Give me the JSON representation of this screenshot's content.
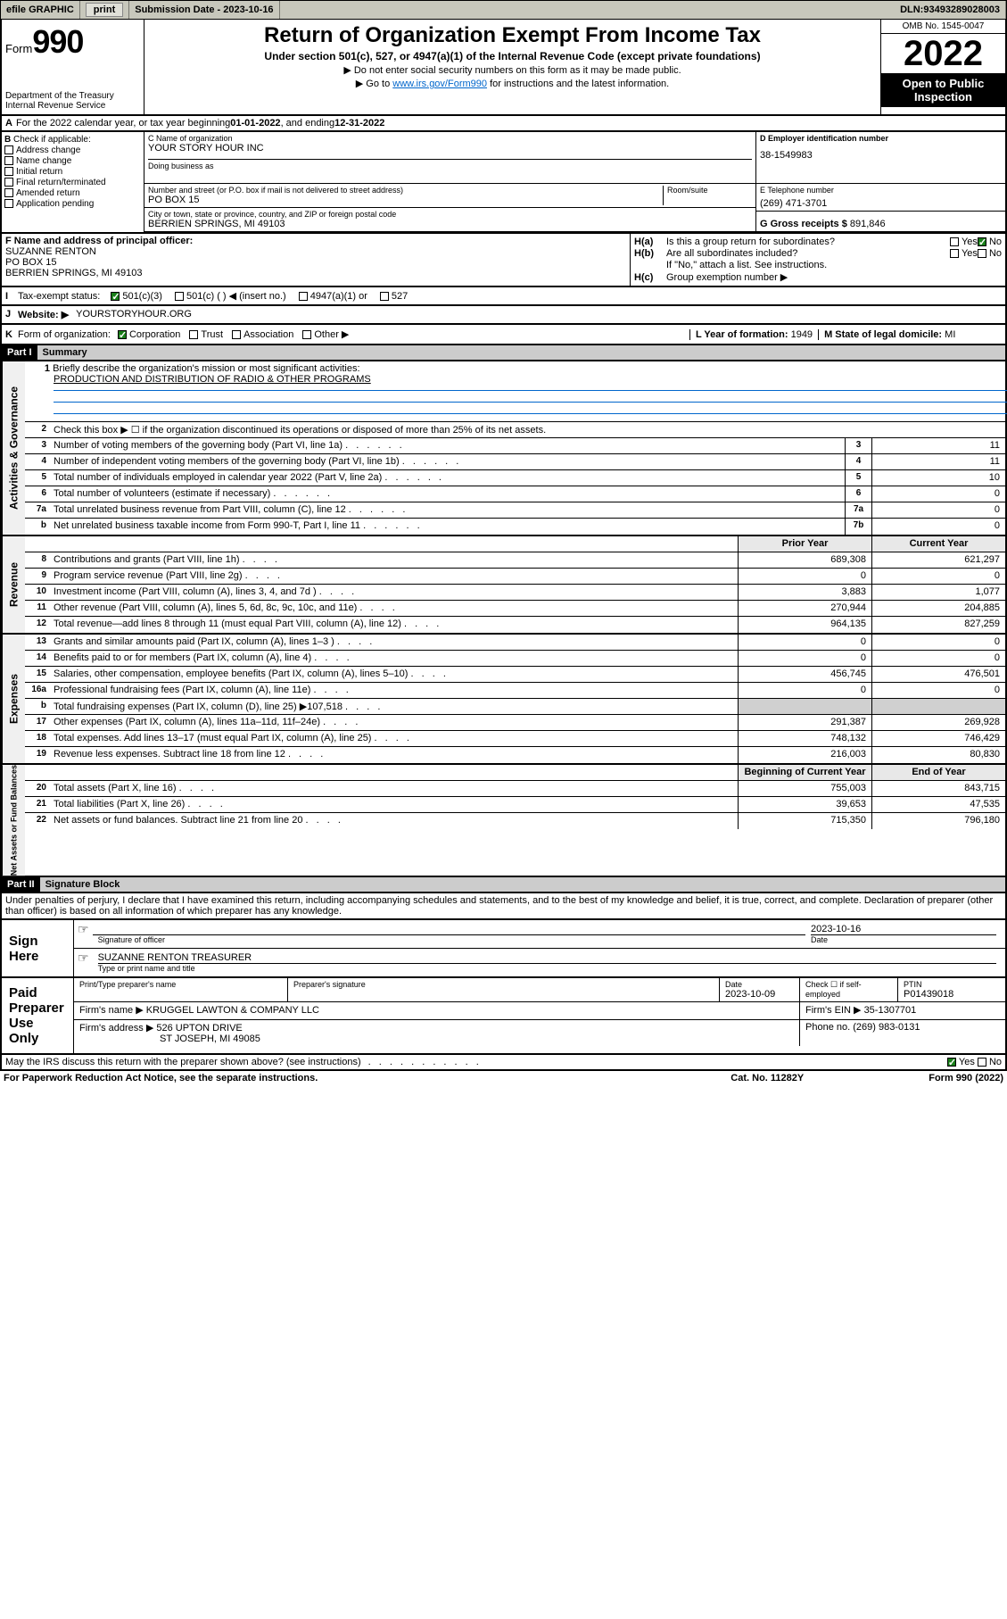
{
  "topbar": {
    "efile": "efile GRAPHIC",
    "print": "print",
    "submission_label": "Submission Date - ",
    "submission_date": "2023-10-16",
    "dln_label": "DLN: ",
    "dln": "93493289028003"
  },
  "header": {
    "form_word": "Form",
    "form_num": "990",
    "dept": "Department of the Treasury",
    "irs": "Internal Revenue Service",
    "title": "Return of Organization Exempt From Income Tax",
    "subtitle": "Under section 501(c), 527, or 4947(a)(1) of the Internal Revenue Code (except private foundations)",
    "note1": "▶ Do not enter social security numbers on this form as it may be made public.",
    "note2_a": "▶ Go to ",
    "note2_link": "www.irs.gov/Form990",
    "note2_b": " for instructions and the latest information.",
    "omb": "OMB No. 1545-0047",
    "year": "2022",
    "open_pub1": "Open to Public",
    "open_pub2": "Inspection"
  },
  "lineA": {
    "a": "A",
    "text": "For the 2022 calendar year, or tax year beginning ",
    "begin": "01-01-2022",
    "mid": " , and ending ",
    "end": "12-31-2022"
  },
  "sectionB": {
    "b": "B",
    "label": "Check if applicable:",
    "items": [
      "Address change",
      "Name change",
      "Initial return",
      "Final return/terminated",
      "Amended return",
      "Application pending"
    ]
  },
  "sectionC": {
    "c_lbl": "C Name of organization",
    "name": "YOUR STORY HOUR INC",
    "dba_lbl": "Doing business as",
    "street_lbl": "Number and street (or P.O. box if mail is not delivered to street address)",
    "street": "PO BOX 15",
    "room_lbl": "Room/suite",
    "city_lbl": "City or town, state or province, country, and ZIP or foreign postal code",
    "city": "BERRIEN SPRINGS, MI  49103"
  },
  "sectionD": {
    "lbl": "D Employer identification number",
    "val": "38-1549983"
  },
  "sectionE": {
    "lbl": "E Telephone number",
    "val": "(269) 471-3701"
  },
  "sectionG": {
    "lbl": "G Gross receipts $",
    "val": "891,846"
  },
  "sectionF": {
    "lbl": "F Name and address of principal officer:",
    "name": "SUZANNE RENTON",
    "addr1": "PO BOX 15",
    "addr2": "BERRIEN SPRINGS, MI  49103"
  },
  "sectionH": {
    "ha": "H(a)",
    "ha_txt": "Is this a group return for subordinates?",
    "hb": "H(b)",
    "hb_txt": "Are all subordinates included?",
    "hb_note": "If \"No,\" attach a list. See instructions.",
    "hc": "H(c)",
    "hc_txt": "Group exemption number ▶",
    "yes": "Yes",
    "no": "No"
  },
  "sectionI": {
    "i": "I",
    "lbl": "Tax-exempt status:",
    "opts": [
      "501(c)(3)",
      "501(c) (  ) ◀ (insert no.)",
      "4947(a)(1) or",
      "527"
    ]
  },
  "sectionJ": {
    "j": "J",
    "lbl": "Website: ▶",
    "val": "YOURSTORYHOUR.ORG"
  },
  "sectionK": {
    "k": "K",
    "lbl": "Form of organization:",
    "opts": [
      "Corporation",
      "Trust",
      "Association",
      "Other ▶"
    ]
  },
  "sectionL": {
    "lbl": "L Year of formation:",
    "val": "1949"
  },
  "sectionM": {
    "lbl": "M State of legal domicile:",
    "val": "MI"
  },
  "partI": {
    "tag": "Part I",
    "title": "Summary"
  },
  "summary": {
    "activities_governance": {
      "label": "Activities & Governance",
      "q1_num": "1",
      "q1": "Briefly describe the organization's mission or most significant activities:",
      "q1_val": "PRODUCTION AND DISTRIBUTION OF RADIO & OTHER PROGRAMS",
      "q2_num": "2",
      "q2": "Check this box ▶ ☐  if the organization discontinued its operations or disposed of more than 25% of its net assets.",
      "rows": [
        {
          "n": "3",
          "t": "Number of voting members of the governing body (Part VI, line 1a)",
          "box": "3",
          "v": "11"
        },
        {
          "n": "4",
          "t": "Number of independent voting members of the governing body (Part VI, line 1b)",
          "box": "4",
          "v": "11"
        },
        {
          "n": "5",
          "t": "Total number of individuals employed in calendar year 2022 (Part V, line 2a)",
          "box": "5",
          "v": "10"
        },
        {
          "n": "6",
          "t": "Total number of volunteers (estimate if necessary)",
          "box": "6",
          "v": "0"
        },
        {
          "n": "7a",
          "t": "Total unrelated business revenue from Part VIII, column (C), line 12",
          "box": "7a",
          "v": "0"
        },
        {
          "n": "b",
          "t": "Net unrelated business taxable income from Form 990-T, Part I, line 11",
          "box": "7b",
          "v": "0"
        }
      ]
    },
    "yr_hdr": {
      "prior": "Prior Year",
      "current": "Current Year"
    },
    "revenue": {
      "label": "Revenue",
      "rows": [
        {
          "n": "8",
          "t": "Contributions and grants (Part VIII, line 1h)",
          "p": "689,308",
          "c": "621,297"
        },
        {
          "n": "9",
          "t": "Program service revenue (Part VIII, line 2g)",
          "p": "0",
          "c": "0"
        },
        {
          "n": "10",
          "t": "Investment income (Part VIII, column (A), lines 3, 4, and 7d )",
          "p": "3,883",
          "c": "1,077"
        },
        {
          "n": "11",
          "t": "Other revenue (Part VIII, column (A), lines 5, 6d, 8c, 9c, 10c, and 11e)",
          "p": "270,944",
          "c": "204,885"
        },
        {
          "n": "12",
          "t": "Total revenue—add lines 8 through 11 (must equal Part VIII, column (A), line 12)",
          "p": "964,135",
          "c": "827,259"
        }
      ]
    },
    "expenses": {
      "label": "Expenses",
      "rows": [
        {
          "n": "13",
          "t": "Grants and similar amounts paid (Part IX, column (A), lines 1–3 )",
          "p": "0",
          "c": "0"
        },
        {
          "n": "14",
          "t": "Benefits paid to or for members (Part IX, column (A), line 4)",
          "p": "0",
          "c": "0"
        },
        {
          "n": "15",
          "t": "Salaries, other compensation, employee benefits (Part IX, column (A), lines 5–10)",
          "p": "456,745",
          "c": "476,501"
        },
        {
          "n": "16a",
          "t": "Professional fundraising fees (Part IX, column (A), line 11e)",
          "p": "0",
          "c": "0"
        },
        {
          "n": "b",
          "t": "Total fundraising expenses (Part IX, column (D), line 25) ▶107,518",
          "p": "",
          "c": "",
          "blank": true
        },
        {
          "n": "17",
          "t": "Other expenses (Part IX, column (A), lines 11a–11d, 11f–24e)",
          "p": "291,387",
          "c": "269,928"
        },
        {
          "n": "18",
          "t": "Total expenses. Add lines 13–17 (must equal Part IX, column (A), line 25)",
          "p": "748,132",
          "c": "746,429"
        },
        {
          "n": "19",
          "t": "Revenue less expenses. Subtract line 18 from line 12",
          "p": "216,003",
          "c": "80,830"
        }
      ]
    },
    "bal_hdr": {
      "beg": "Beginning of Current Year",
      "end": "End of Year"
    },
    "netassets": {
      "label": "Net Assets or Fund Balances",
      "rows": [
        {
          "n": "20",
          "t": "Total assets (Part X, line 16)",
          "p": "755,003",
          "c": "843,715"
        },
        {
          "n": "21",
          "t": "Total liabilities (Part X, line 26)",
          "p": "39,653",
          "c": "47,535"
        },
        {
          "n": "22",
          "t": "Net assets or fund balances. Subtract line 21 from line 20",
          "p": "715,350",
          "c": "796,180"
        }
      ]
    }
  },
  "partII": {
    "tag": "Part II",
    "title": "Signature Block"
  },
  "sig_intro": "Under penalties of perjury, I declare that I have examined this return, including accompanying schedules and statements, and to the best of my knowledge and belief, it is true, correct, and complete. Declaration of preparer (other than officer) is based on all information of which preparer has any knowledge.",
  "sign_here": {
    "label1": "Sign",
    "label2": "Here",
    "sig_lbl": "Signature of officer",
    "date": "2023-10-16",
    "date_lbl": "Date",
    "name": "SUZANNE RENTON  TREASURER",
    "name_lbl": "Type or print name and title"
  },
  "paid_prep": {
    "label1": "Paid",
    "label2": "Preparer",
    "label3": "Use Only",
    "hdr_name": "Print/Type preparer's name",
    "hdr_sig": "Preparer's signature",
    "hdr_date": "Date",
    "date": "2023-10-09",
    "check_lbl": "Check ☐ if self-employed",
    "ptin_lbl": "PTIN",
    "ptin": "P01439018",
    "firm_name_lbl": "Firm's name    ▶",
    "firm_name": "KRUGGEL LAWTON & COMPANY LLC",
    "firm_ein_lbl": "Firm's EIN ▶",
    "firm_ein": "35-1307701",
    "firm_addr_lbl": "Firm's address ▶",
    "firm_addr1": "526 UPTON DRIVE",
    "firm_addr2": "ST JOSEPH, MI  49085",
    "phone_lbl": "Phone no.",
    "phone": "(269) 983-0131"
  },
  "discuss": {
    "q": "May the IRS discuss this return with the preparer shown above? (see instructions)",
    "yes": "Yes",
    "no": "No"
  },
  "footer": {
    "left": "For Paperwork Reduction Act Notice, see the separate instructions.",
    "mid": "Cat. No. 11282Y",
    "right": "Form 990 (2022)"
  }
}
